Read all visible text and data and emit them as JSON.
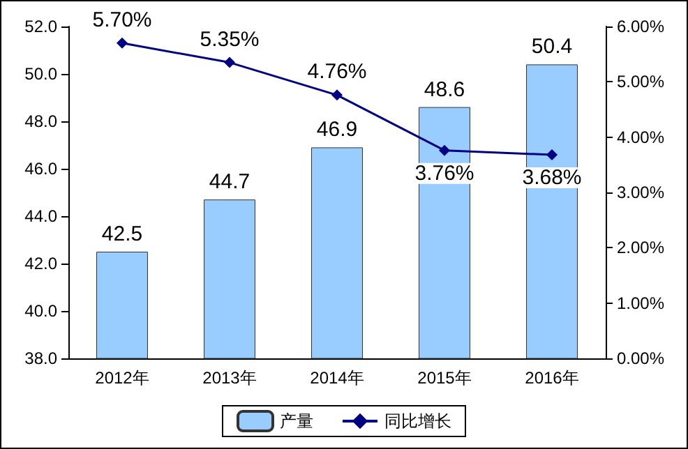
{
  "chart_data": {
    "type": "bar",
    "categories": [
      "2012年",
      "2013年",
      "2014年",
      "2015年",
      "2016年"
    ],
    "series": [
      {
        "name": "产量",
        "color": "#99ccff",
        "values": [
          42.5,
          44.7,
          46.9,
          48.6,
          50.4
        ],
        "value_labels": [
          "42.5",
          "44.7",
          "46.9",
          "48.6",
          "50.4"
        ]
      },
      {
        "name": "同比增长",
        "type": "line",
        "axis": "y2",
        "color": "#000080",
        "values": [
          5.7,
          5.35,
          4.76,
          3.76,
          3.68
        ],
        "value_labels": [
          "5.70%",
          "5.35%",
          "4.76%",
          "3.76%",
          "3.68%"
        ]
      }
    ],
    "ylim": [
      38,
      52
    ],
    "yticks": [
      {
        "value": 38,
        "label": "38.0"
      },
      {
        "value": 40,
        "label": "40.0"
      },
      {
        "value": 42,
        "label": "42.0"
      },
      {
        "value": 44,
        "label": "44.0"
      },
      {
        "value": 46,
        "label": "46.0"
      },
      {
        "value": 48,
        "label": "48.0"
      },
      {
        "value": 50,
        "label": "50.0"
      },
      {
        "value": 52,
        "label": "52.0"
      }
    ],
    "y2lim": [
      0,
      6
    ],
    "y2ticks": [
      {
        "value": 0,
        "label": "0.00%"
      },
      {
        "value": 1,
        "label": "1.00%"
      },
      {
        "value": 2,
        "label": "2.00%"
      },
      {
        "value": 3,
        "label": "3.00%"
      },
      {
        "value": 4,
        "label": "4.00%"
      },
      {
        "value": 5,
        "label": "5.00%"
      },
      {
        "value": 6,
        "label": "6.00%"
      }
    ],
    "legend": "bottom",
    "marker": "diamond"
  }
}
